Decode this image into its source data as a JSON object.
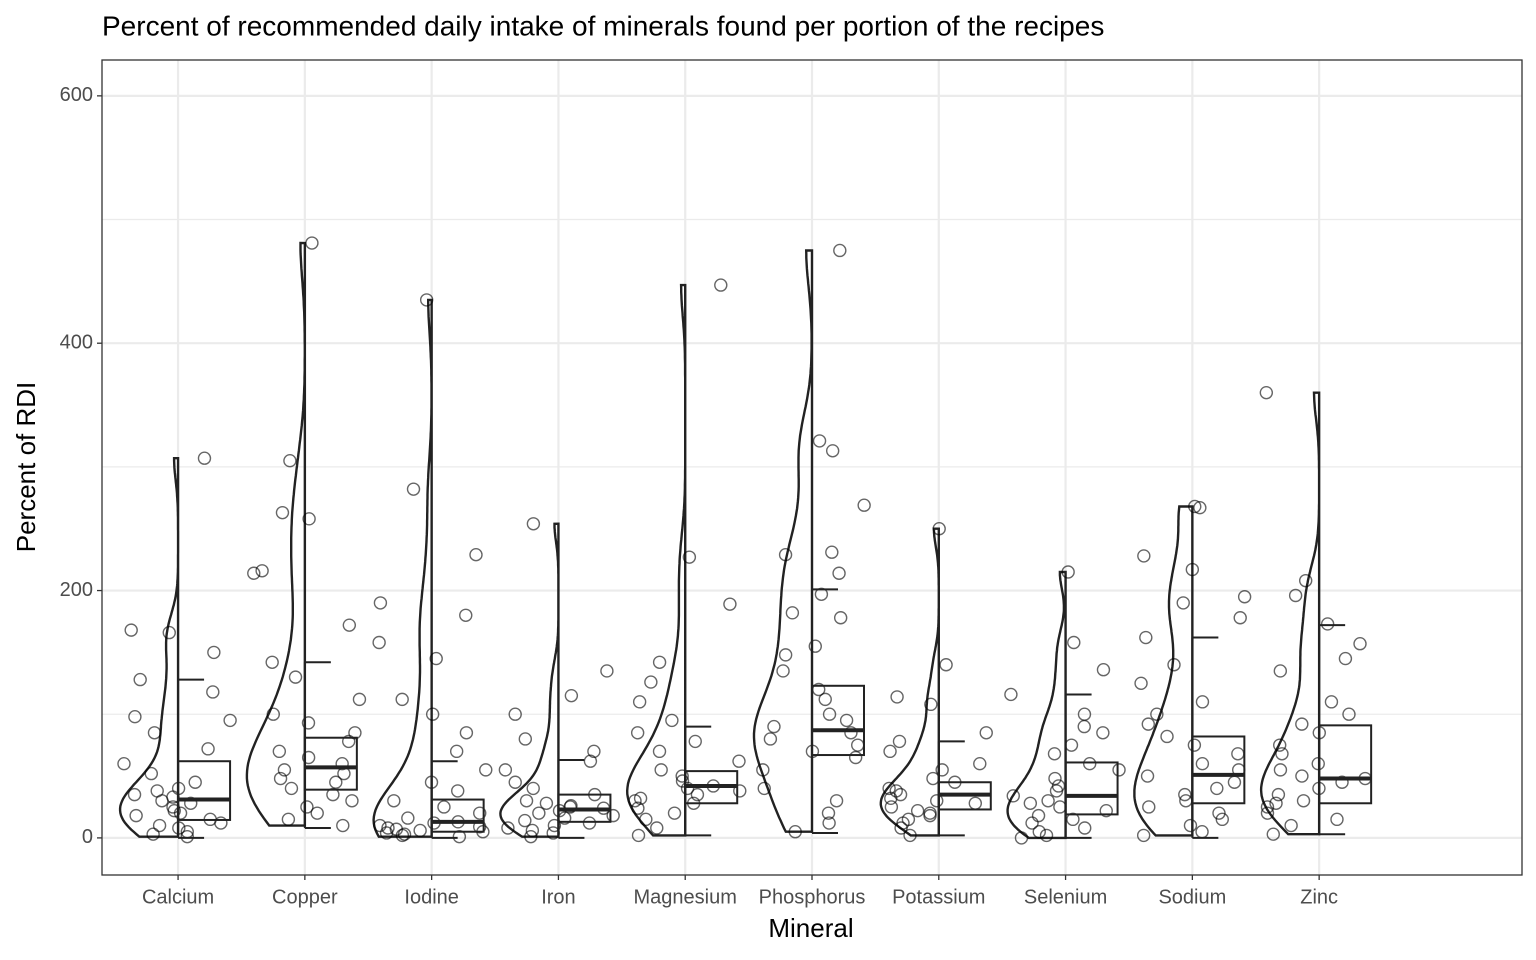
{
  "chart_data": {
    "type": "raincloud",
    "title": "Percent of recommended daily intake of minerals found per portion of the recipes",
    "x_label": "Mineral",
    "y_label": "Percent of RDI",
    "categories": [
      "Calcium",
      "Copper",
      "Iodine",
      "Iron",
      "Magnesium",
      "Phosphorus",
      "Potassium",
      "Selenium",
      "Sodium",
      "Zinc"
    ],
    "ylim": [
      -30,
      629
    ],
    "yticks": [
      0,
      200,
      400,
      600
    ],
    "y_minor_gridlines": [
      100,
      300,
      500
    ],
    "grid": true,
    "point_color": "#000000",
    "line_color": "#222222",
    "points": [
      [
        307,
        168,
        166,
        150,
        128,
        118,
        98,
        95,
        85,
        72,
        60,
        52,
        45,
        40,
        35,
        30,
        28,
        25,
        22,
        18,
        15,
        12,
        10,
        8,
        5,
        3,
        1,
        20,
        33,
        38
      ],
      [
        481,
        305,
        263,
        258,
        216,
        214,
        172,
        142,
        130,
        112,
        100,
        93,
        85,
        78,
        70,
        65,
        60,
        55,
        52,
        48,
        45,
        40,
        35,
        30,
        25,
        20,
        15,
        10
      ],
      [
        435,
        282,
        229,
        190,
        180,
        158,
        145,
        112,
        100,
        85,
        70,
        55,
        45,
        38,
        30,
        25,
        20,
        16,
        13,
        10,
        8,
        6,
        5,
        4,
        3,
        2,
        1,
        12,
        9,
        7
      ],
      [
        254,
        135,
        115,
        100,
        80,
        70,
        62,
        55,
        45,
        40,
        35,
        30,
        28,
        25,
        22,
        20,
        18,
        16,
        14,
        12,
        10,
        8,
        6,
        4,
        1,
        24,
        26
      ],
      [
        447,
        227,
        189,
        142,
        126,
        110,
        95,
        85,
        78,
        70,
        62,
        55,
        50,
        46,
        42,
        40,
        38,
        35,
        32,
        30,
        28,
        24,
        20,
        15,
        8,
        2
      ],
      [
        475,
        321,
        313,
        269,
        231,
        229,
        214,
        197,
        182,
        178,
        155,
        148,
        135,
        120,
        112,
        100,
        95,
        90,
        85,
        80,
        75,
        70,
        65,
        55,
        40,
        30,
        20,
        12,
        5
      ],
      [
        250,
        140,
        114,
        108,
        85,
        78,
        70,
        60,
        55,
        48,
        45,
        40,
        38,
        35,
        32,
        30,
        28,
        25,
        22,
        20,
        18,
        15,
        12,
        8,
        2
      ],
      [
        215,
        158,
        136,
        116,
        100,
        90,
        85,
        75,
        68,
        60,
        55,
        48,
        42,
        38,
        34,
        30,
        28,
        25,
        22,
        18,
        15,
        12,
        8,
        5,
        2,
        0
      ],
      [
        268,
        267,
        228,
        217,
        195,
        190,
        178,
        162,
        140,
        125,
        110,
        100,
        92,
        82,
        75,
        68,
        60,
        55,
        50,
        45,
        40,
        35,
        30,
        25,
        20,
        15,
        10,
        5,
        2
      ],
      [
        360,
        208,
        196,
        173,
        157,
        145,
        135,
        110,
        100,
        92,
        85,
        75,
        68,
        60,
        55,
        50,
        48,
        45,
        40,
        35,
        30,
        28,
        25,
        20,
        15,
        10,
        3
      ]
    ],
    "box": {
      "whisker_low": [
        0,
        8,
        0,
        0,
        2,
        4,
        2,
        0,
        0,
        3
      ],
      "q1": [
        14.5,
        39,
        5,
        13,
        28,
        67,
        23,
        19,
        28,
        28
      ],
      "median": [
        31,
        57,
        13,
        23,
        42,
        87,
        35,
        34,
        51,
        48
      ],
      "q3": [
        62,
        81,
        31,
        35,
        54,
        123,
        45,
        61,
        82,
        91
      ],
      "whisker_high": [
        128,
        142,
        62,
        63,
        90,
        201,
        78,
        116,
        162,
        172
      ]
    }
  }
}
